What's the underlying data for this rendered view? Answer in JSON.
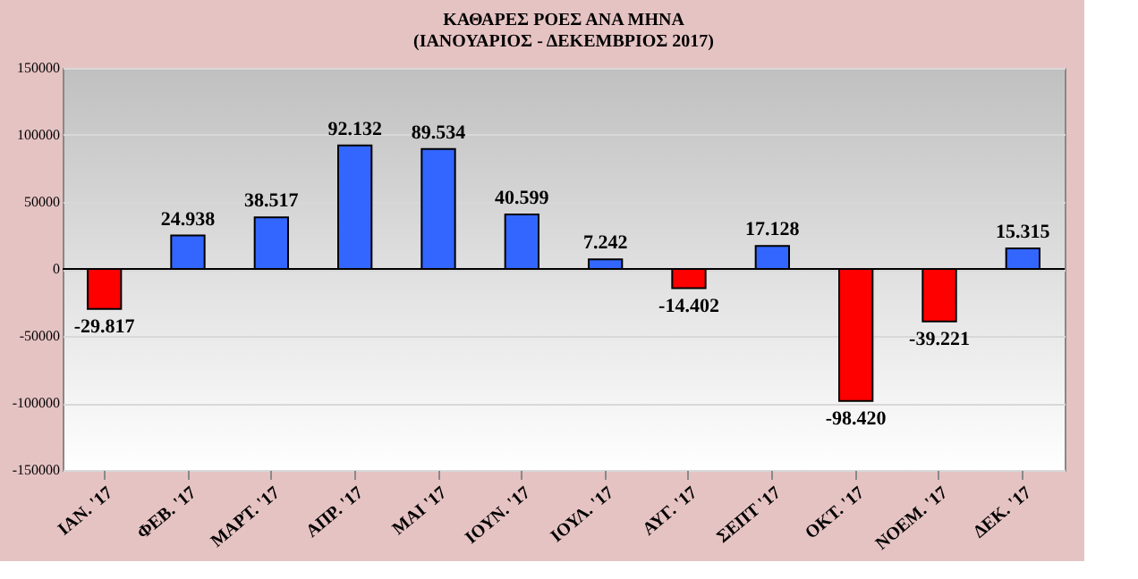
{
  "chart_data": {
    "type": "bar",
    "title": "ΚΑΘΑΡΕΣ ΡΟΕΣ ΑΝΑ ΜΗΝΑ",
    "subtitle": "(ΙΑΝΟΥΑΡΙΟΣ  -  ΔΕΚΕΜΒΡΙΟΣ  2017)",
    "categories": [
      "ΙΑΝ. '17",
      "ΦΕΒ. '17",
      "ΜΑΡΤ. '17",
      "ΑΠΡ. '17",
      "ΜΑΙ '17",
      "ΙΟΥΝ. '17",
      "ΙΟΥΛ. '17",
      "ΑΥΓ. '17",
      "ΣΕΠΤ '17",
      "ΟΚΤ. '17",
      "ΝΟΕΜ. '17",
      "ΔΕΚ. '17"
    ],
    "values": [
      -29817,
      24938,
      38517,
      92132,
      89534,
      40599,
      7242,
      -14402,
      17128,
      -98420,
      -39221,
      15315
    ],
    "value_labels": [
      "-29.817",
      "24.938",
      "38.517",
      "92.132",
      "89.534",
      "40.599",
      "7.242",
      "-14.402",
      "17.128",
      "-98.420",
      "-39.221",
      "15.315"
    ],
    "colors": [
      "#ff0000",
      "#3366ff",
      "#3366ff",
      "#3366ff",
      "#3366ff",
      "#3366ff",
      "#3366ff",
      "#ff0000",
      "#3366ff",
      "#ff0000",
      "#ff0000",
      "#3366ff"
    ],
    "ylim": [
      -150000,
      150000
    ],
    "yticks": [
      -150000,
      -100000,
      -50000,
      0,
      50000,
      100000,
      150000
    ],
    "grid": "y"
  }
}
